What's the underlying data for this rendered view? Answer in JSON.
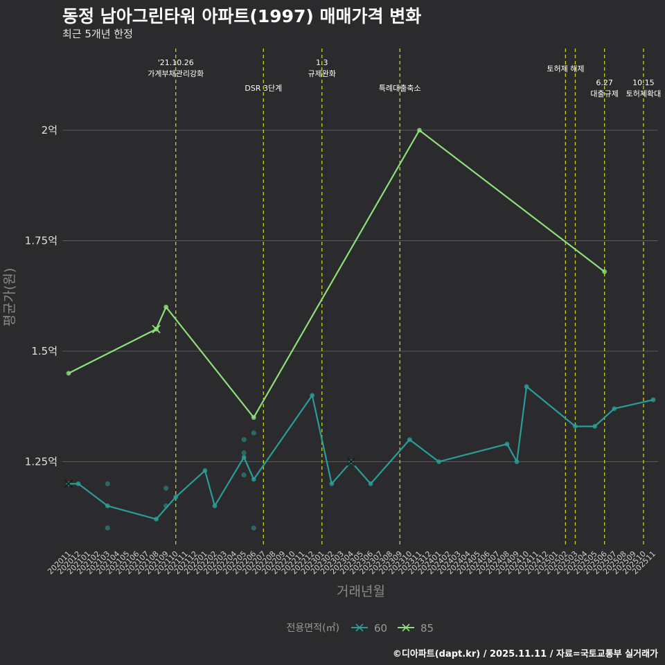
{
  "title": "동정 남아그린타워 아파트(1997) 매매가격 변화",
  "subtitle": "최근 5개년 한정",
  "caption": "©디아파트(dapt.kr) / 2025.11.11 / 자료=국토교통부 실거래가",
  "colors": {
    "background": "#2b2b2d",
    "grid": "#5a5a5a",
    "series60": "#2a9d98",
    "series85": "#8ee07a",
    "event_line": "#c8cf2a"
  },
  "chart_data": {
    "type": "line",
    "title": "동정 남아그린타워 아파트(1997) 매매가격 변화",
    "subtitle": "최근 5개년 한정",
    "xlabel": "거래년월",
    "ylabel": "평균가(원)",
    "ylim": [
      1.07,
      2.22
    ],
    "yticks": [
      {
        "value": 1.25,
        "label": "1.25억"
      },
      {
        "value": 1.5,
        "label": "1.5억"
      },
      {
        "value": 1.75,
        "label": "1.75억"
      },
      {
        "value": 2.0,
        "label": "2억"
      }
    ],
    "x_categories": [
      "202011",
      "202012",
      "202101",
      "202102",
      "202103",
      "202104",
      "202105",
      "202106",
      "202107",
      "202108",
      "202109",
      "202110",
      "202111",
      "202112",
      "202201",
      "202202",
      "202203",
      "202204",
      "202205",
      "202206",
      "202207",
      "202208",
      "202209",
      "202210",
      "202211",
      "202212",
      "202301",
      "202302",
      "202303",
      "202304",
      "202305",
      "202306",
      "202307",
      "202308",
      "202309",
      "202310",
      "202311",
      "202312",
      "202401",
      "202402",
      "202403",
      "202404",
      "202405",
      "202406",
      "202407",
      "202408",
      "202409",
      "202410",
      "202411",
      "202412",
      "202501",
      "202502",
      "202503",
      "202504",
      "202505",
      "202506",
      "202507",
      "202508",
      "202509",
      "202510",
      "202511"
    ],
    "legend": {
      "title": "전용면적(㎡)",
      "position": "bottom",
      "items": [
        "60",
        "85"
      ]
    },
    "series": [
      {
        "name": "60",
        "color": "#2a9d98",
        "line": [
          [
            "202011",
            1.2
          ],
          [
            "202012",
            1.2
          ],
          [
            "202103",
            1.15
          ],
          [
            "202108",
            1.12
          ],
          [
            "202110",
            1.17
          ],
          [
            "202201",
            1.23
          ],
          [
            "202202",
            1.15
          ],
          [
            "202205",
            1.26
          ],
          [
            "202206",
            1.21
          ],
          [
            "202212",
            1.4
          ],
          [
            "202302",
            1.2
          ],
          [
            "202304",
            1.25
          ],
          [
            "202306",
            1.2
          ],
          [
            "202310",
            1.3
          ],
          [
            "202401",
            1.25
          ],
          [
            "202408",
            1.29
          ],
          [
            "202409",
            1.25
          ],
          [
            "202410",
            1.42
          ],
          [
            "202503",
            1.33
          ],
          [
            "202505",
            1.33
          ],
          [
            "202507",
            1.37
          ],
          [
            "202511",
            1.39
          ]
        ],
        "points": [
          [
            "202103",
            1.2
          ],
          [
            "202103",
            1.1
          ],
          [
            "202109",
            1.19
          ],
          [
            "202109",
            1.15
          ],
          [
            "202205",
            1.3
          ],
          [
            "202205",
            1.27
          ],
          [
            "202205",
            1.22
          ],
          [
            "202206",
            1.315
          ],
          [
            "202206",
            1.1
          ]
        ],
        "cross_markers": [
          [
            "202011",
            1.2
          ],
          [
            "202304",
            1.25
          ]
        ]
      },
      {
        "name": "85",
        "color": "#8ee07a",
        "line": [
          [
            "202011",
            1.45
          ],
          [
            "202108",
            1.55
          ],
          [
            "202109",
            1.6
          ],
          [
            "202206",
            1.35
          ],
          [
            "202311",
            2.0
          ],
          [
            "202506",
            1.68
          ]
        ],
        "points": [],
        "cross_markers": [
          [
            "202108",
            1.55
          ]
        ]
      }
    ],
    "events": [
      {
        "x": "202110",
        "lines": [
          "'21.10.26",
          "가계부채관리강화"
        ],
        "row": 0
      },
      {
        "x": "202207",
        "lines": [
          "DSR 3단계"
        ],
        "row": 1
      },
      {
        "x": "202301",
        "lines": [
          "1.3",
          "규제완화"
        ],
        "row": 0
      },
      {
        "x": "202309",
        "lines": [
          "특례대출축소"
        ],
        "row": 1
      },
      {
        "x": "202502",
        "lines": [
          "토허제 해제"
        ],
        "row": 0
      },
      {
        "x": "202503",
        "lines": [],
        "row": 0
      },
      {
        "x": "202506",
        "lines": [
          "6.27",
          "대출규제"
        ],
        "row": 2
      },
      {
        "x": "202510",
        "lines": [
          "10.15",
          "토허제확대"
        ],
        "row": 2
      }
    ]
  }
}
